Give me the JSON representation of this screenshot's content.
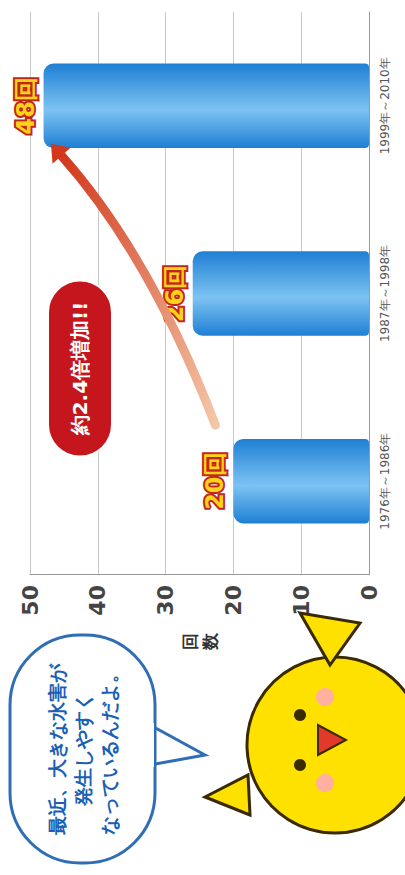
{
  "chart_data": {
    "type": "bar",
    "categories": [
      "1976年～1986年",
      "1987年～1998年",
      "1999年～2010年"
    ],
    "values": [
      20,
      26,
      48
    ],
    "value_labels": [
      "20回",
      "26回",
      "48回"
    ],
    "color": "#1f7fd4",
    "ylabel": "回数",
    "ylim": [
      0,
      50
    ],
    "yticks": [
      0,
      10,
      20,
      30,
      40,
      50
    ],
    "grid": true,
    "data_labels": true,
    "annotation": "約2.4倍増加!!",
    "speech_bubble": [
      "最近、大きな水害が",
      "発生しやすく",
      "なっているんだよ。"
    ]
  }
}
